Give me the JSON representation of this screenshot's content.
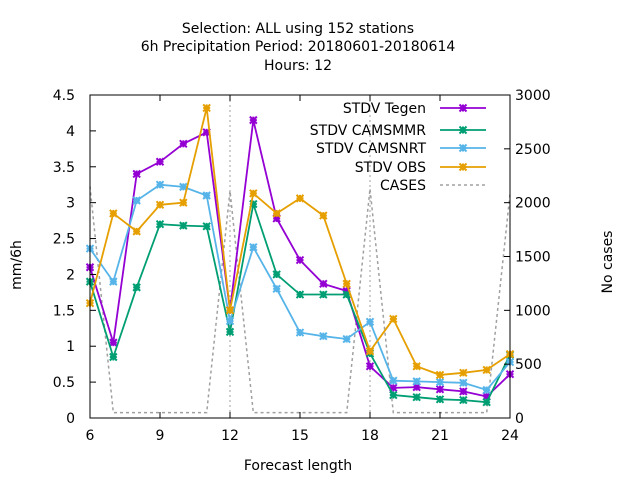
{
  "chart_data": {
    "type": "line",
    "title_lines": [
      "Selection: ALL using   152 stations",
      "6h Precipitation   Period: 20180601-20180614",
      "Hours:  12"
    ],
    "xlabel": "Forecast length",
    "ylabel": "mm/6h",
    "y2label": "No cases",
    "xlim": [
      6,
      24
    ],
    "ylim": [
      0,
      4.5
    ],
    "y2lim": [
      0,
      3000
    ],
    "x_ticks": [
      6,
      9,
      12,
      15,
      18,
      21,
      24
    ],
    "y_ticks": [
      "0",
      "0.5",
      "1",
      "1.5",
      "2",
      "2.5",
      "3",
      "3.5",
      "4",
      "4.5"
    ],
    "y2_ticks": [
      0,
      500,
      1000,
      1500,
      2000,
      2500,
      3000
    ],
    "legend_position": "top-right",
    "grid": "vertical dashed lines at x = 12 and x = 18",
    "x": [
      6,
      7,
      8,
      9,
      10,
      11,
      12,
      13,
      14,
      15,
      16,
      17,
      18,
      19,
      20,
      21,
      22,
      23,
      24
    ],
    "series": [
      {
        "name": "STDV Tegen",
        "color": "#9400d3",
        "marker": "x-cross",
        "axis": "y",
        "values": [
          2.1,
          1.05,
          3.4,
          3.57,
          3.82,
          3.98,
          1.5,
          4.15,
          2.78,
          2.2,
          1.87,
          1.77,
          0.72,
          0.42,
          0.43,
          0.4,
          0.37,
          0.3,
          0.61
        ]
      },
      {
        "name": "STDV CAMSMMR",
        "color": "#009e73",
        "marker": "x-cross",
        "axis": "y",
        "values": [
          1.9,
          0.85,
          1.82,
          2.7,
          2.68,
          2.67,
          1.2,
          2.98,
          2.0,
          1.72,
          1.72,
          1.72,
          0.9,
          0.32,
          0.29,
          0.26,
          0.25,
          0.22,
          0.88
        ]
      },
      {
        "name": "STDV CAMSNRT",
        "color": "#56b4e9",
        "marker": "x-cross",
        "axis": "y",
        "values": [
          2.36,
          1.9,
          3.03,
          3.25,
          3.22,
          3.1,
          1.35,
          2.38,
          1.8,
          1.19,
          1.14,
          1.1,
          1.34,
          0.52,
          0.51,
          0.5,
          0.49,
          0.39,
          0.78
        ]
      },
      {
        "name": "STDV OBS",
        "color": "#e69f00",
        "marker": "x-cross",
        "axis": "y",
        "values": [
          1.6,
          2.85,
          2.6,
          2.97,
          3.0,
          4.32,
          1.5,
          3.13,
          2.85,
          3.06,
          2.82,
          1.87,
          0.93,
          1.38,
          0.72,
          0.6,
          0.63,
          0.67,
          0.89
        ]
      },
      {
        "name": "CASES",
        "color": "#a0a0a0",
        "marker": "none",
        "axis": "y2",
        "dashed": true,
        "values": [
          2150,
          50,
          50,
          50,
          50,
          50,
          2110,
          50,
          50,
          50,
          50,
          50,
          2130,
          50,
          50,
          50,
          50,
          50,
          2080
        ]
      }
    ]
  }
}
